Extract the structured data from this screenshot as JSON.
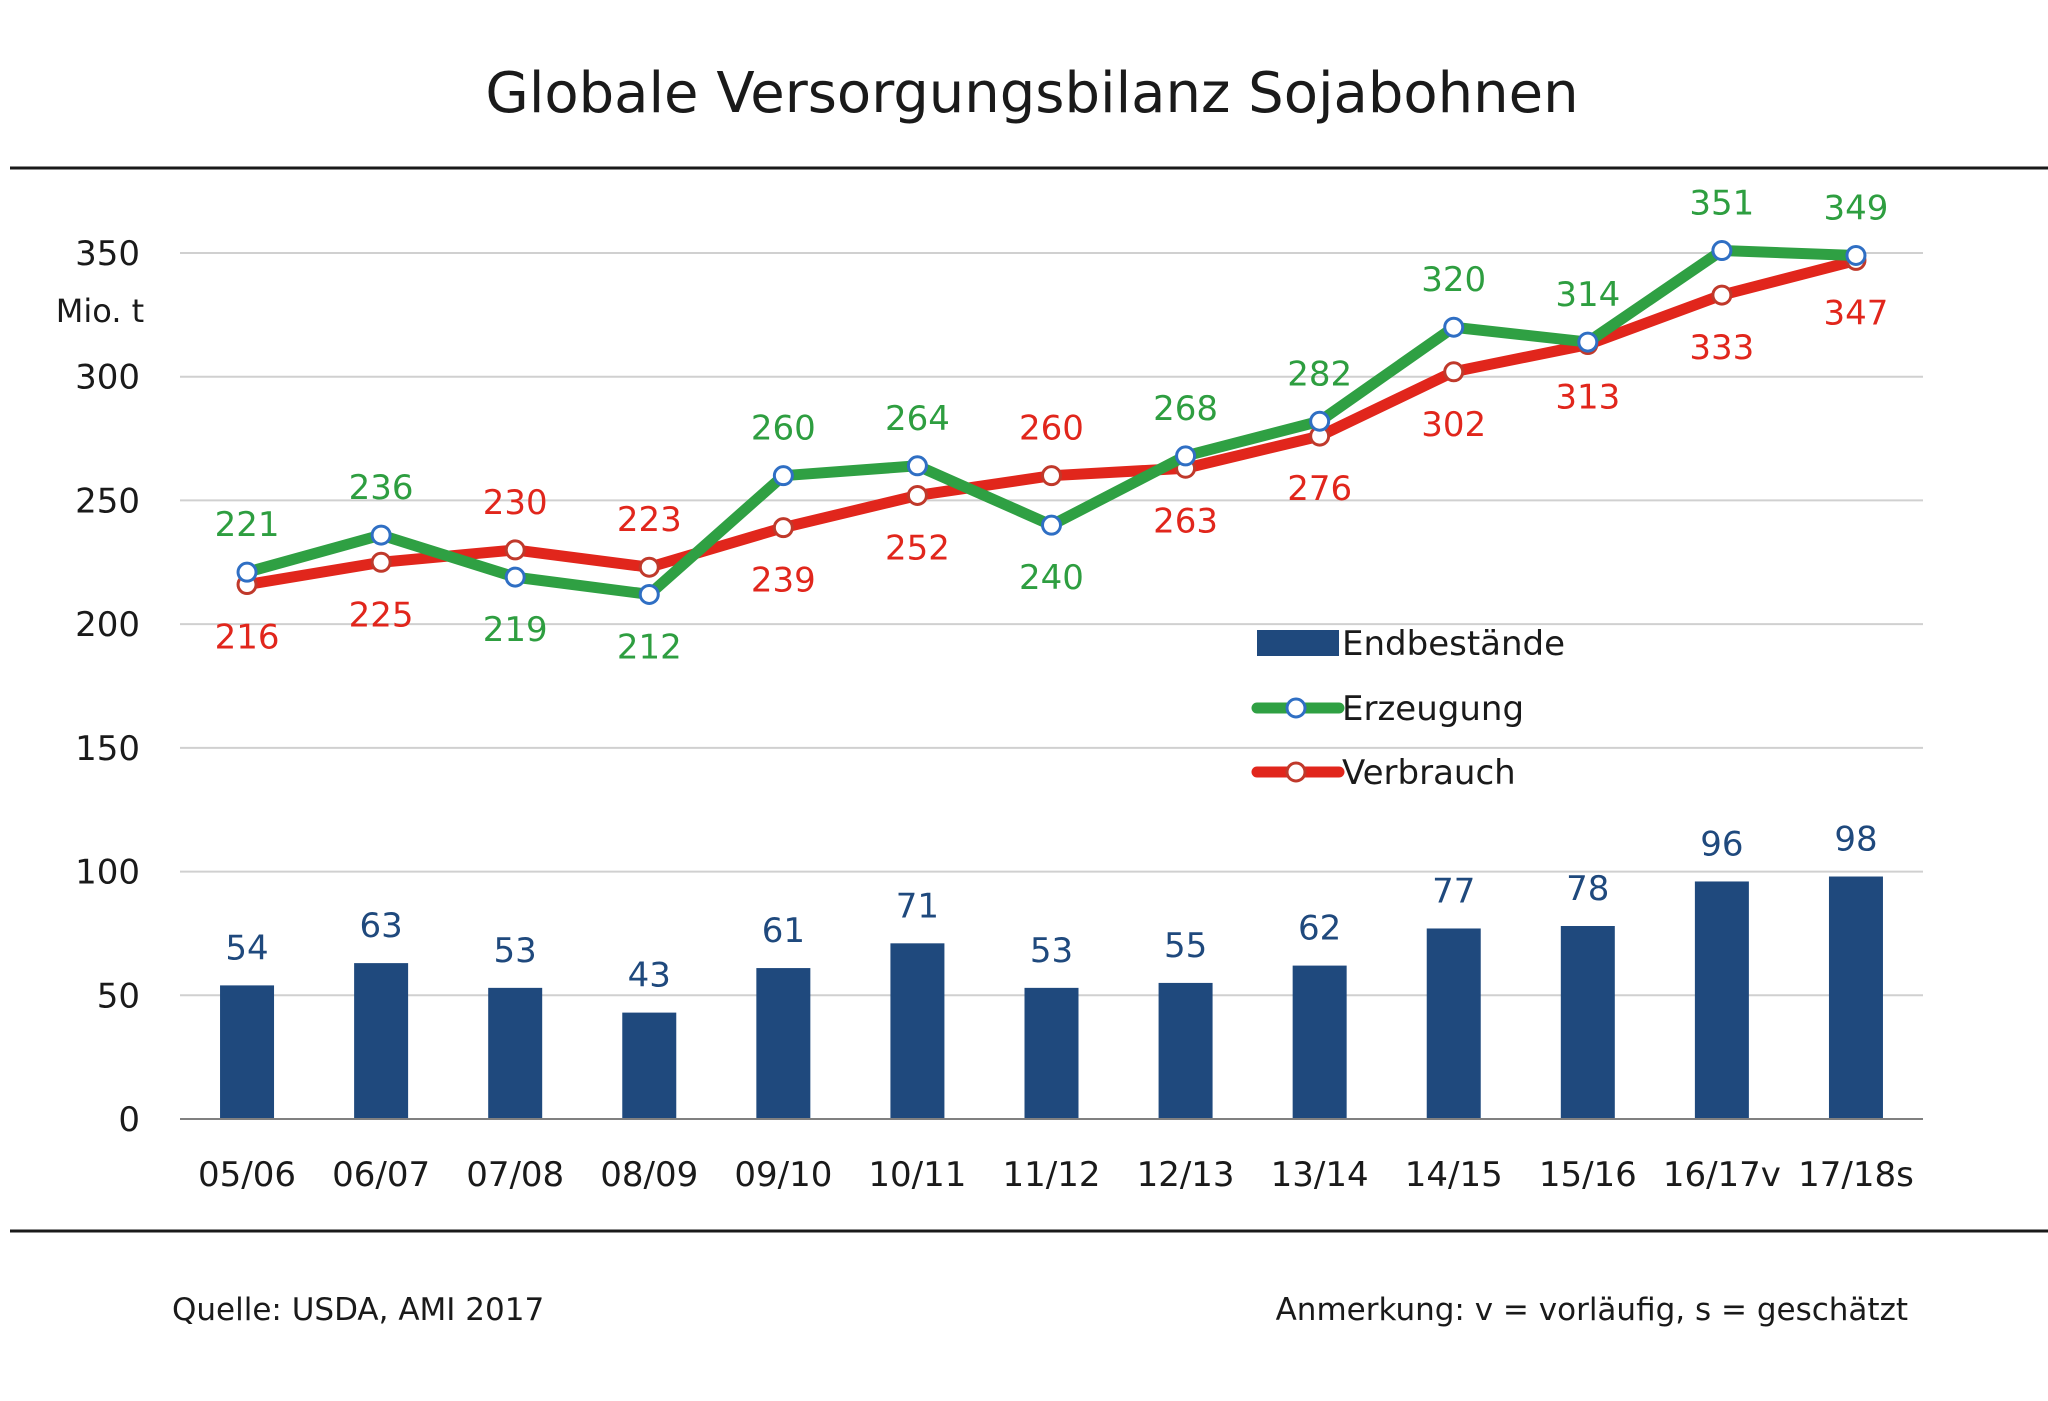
{
  "colors": {
    "bars": "#1f497d",
    "production": "#2fa043",
    "consumption": "#e1261c",
    "marker_edge_production": "#2f6fc4",
    "marker_edge_consumption": "#c0392b",
    "grid": "#d0d0d0",
    "axis": "#808080",
    "rule": "#1a1a1a"
  },
  "chart_data": {
    "type": "bar",
    "title": "Globale Versorgungsbilanz Sojabohnen",
    "unit_label": "Mio. t",
    "categories": [
      "05/06",
      "06/07",
      "07/08",
      "08/09",
      "09/10",
      "10/11",
      "11/12",
      "12/13",
      "13/14",
      "14/15",
      "15/16",
      "16/17v",
      "17/18s"
    ],
    "ylim": [
      0,
      350
    ],
    "yticks": [
      0,
      50,
      100,
      150,
      200,
      250,
      300,
      350
    ],
    "grid": true,
    "legend_position": "center-right",
    "series": [
      {
        "name": "Endbestände",
        "type": "bar",
        "values": [
          54,
          63,
          53,
          43,
          61,
          71,
          53,
          55,
          62,
          77,
          78,
          96,
          98
        ]
      },
      {
        "name": "Erzeugung",
        "type": "line",
        "values": [
          221,
          236,
          219,
          212,
          260,
          264,
          240,
          268,
          282,
          320,
          314,
          351,
          349
        ]
      },
      {
        "name": "Verbrauch",
        "type": "line",
        "values": [
          216,
          225,
          230,
          223,
          239,
          252,
          260,
          263,
          276,
          302,
          313,
          333,
          347
        ]
      }
    ]
  },
  "footer": {
    "source": "Quelle:  USDA, AMI 2017",
    "note": "Anmerkung:  v = vorläufig, s = geschätzt"
  }
}
